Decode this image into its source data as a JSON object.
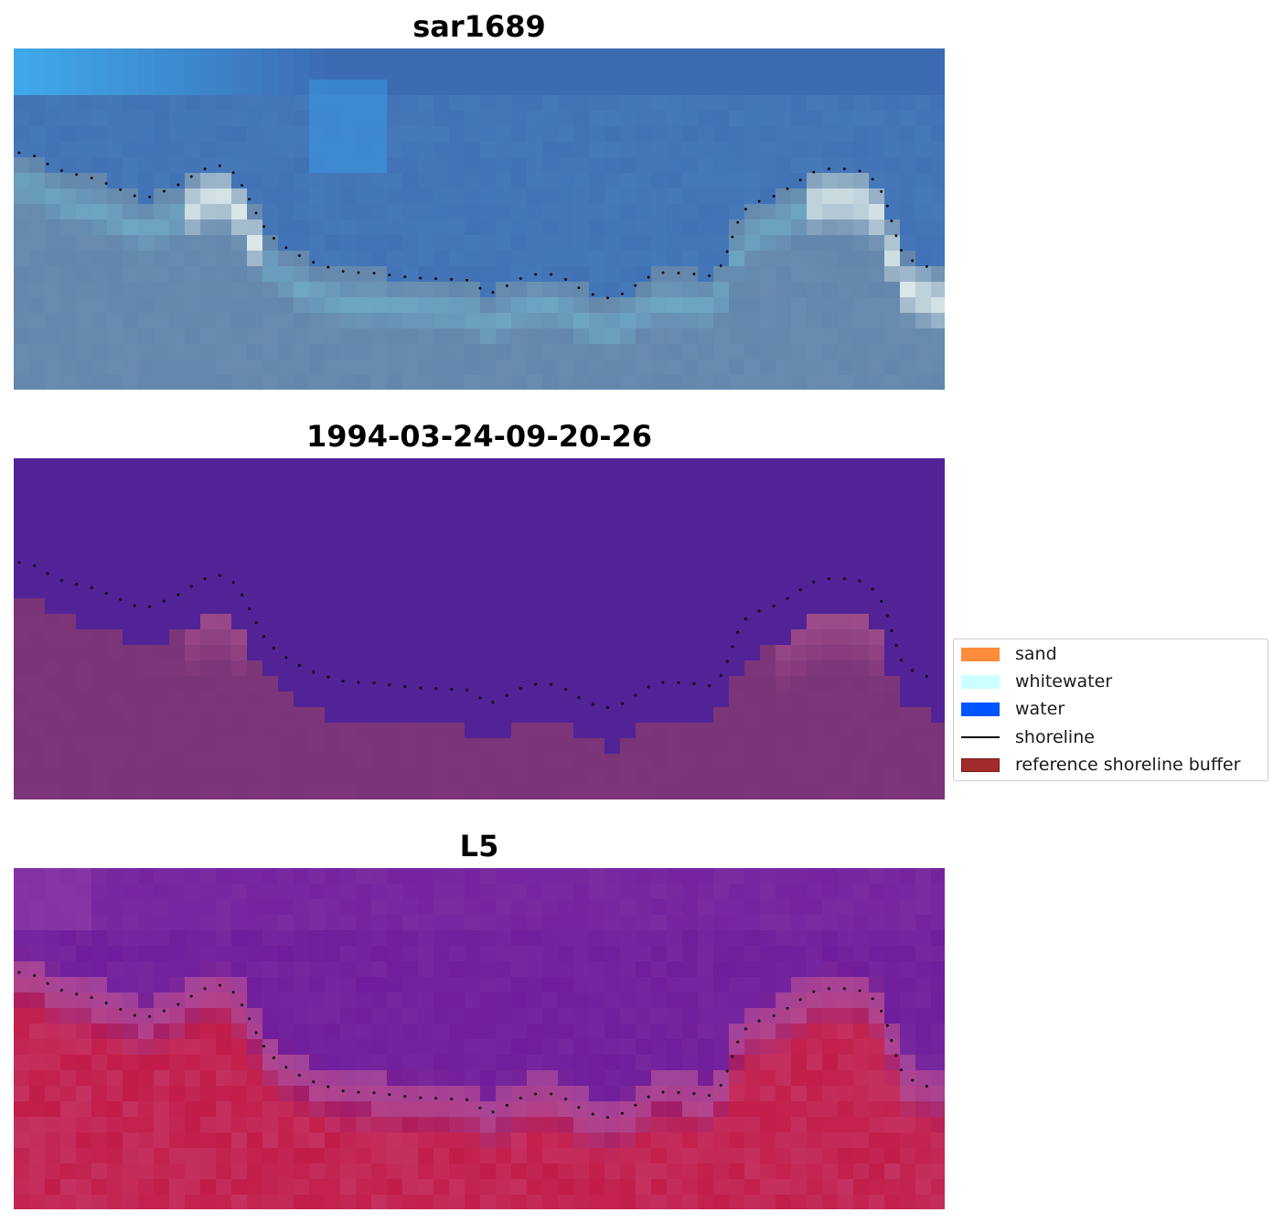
{
  "panels": [
    {
      "title": "sar1689",
      "style": "rgb"
    },
    {
      "title": "1994-03-24-09-20-26",
      "style": "classified"
    },
    {
      "title": "L5",
      "style": "index"
    }
  ],
  "legend": {
    "items": [
      {
        "label": "sand",
        "kind": "patch",
        "color": "#ff8c3a"
      },
      {
        "label": "whitewater",
        "kind": "patch",
        "color": "#ccffff"
      },
      {
        "label": "water",
        "kind": "patch",
        "color": "#0055ff"
      },
      {
        "label": "shoreline",
        "kind": "line",
        "color": "#000000"
      },
      {
        "label": "reference shoreline buffer",
        "kind": "patch",
        "color": "#a32a2a",
        "edge": "#7a1818"
      }
    ]
  },
  "colors": {
    "water_class": "#522297",
    "land_class": "#7b3578",
    "index_water": "#6f1d9c",
    "index_land": "#c21c48"
  }
}
